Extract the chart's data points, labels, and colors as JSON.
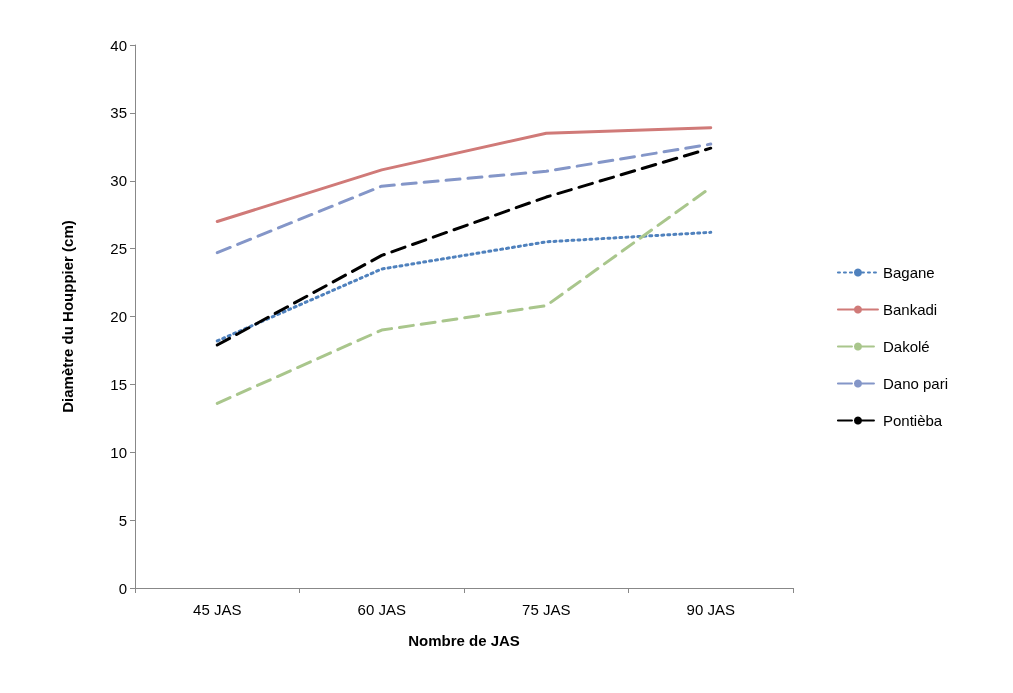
{
  "chart_data": {
    "type": "line",
    "xlabel": "Nombre de JAS",
    "ylabel": "Diamètre du Houppier (cm)",
    "categories": [
      "45 JAS",
      "60 JAS",
      "75 JAS",
      "90 JAS"
    ],
    "series": [
      {
        "name": "Bagane",
        "color": "#4f81bd",
        "line_style": "dotted",
        "values": [
          18.2,
          23.5,
          25.5,
          26.2
        ]
      },
      {
        "name": "Bankadi",
        "color": "#d07a78",
        "line_style": "solid",
        "values": [
          27.0,
          30.8,
          33.5,
          33.9
        ]
      },
      {
        "name": "Dakolé",
        "color": "#a9c68c",
        "line_style": "dashed",
        "values": [
          13.6,
          19.0,
          20.8,
          29.5
        ]
      },
      {
        "name": "Dano pari",
        "color": "#8496c8",
        "line_style": "dashed",
        "values": [
          24.7,
          29.6,
          30.7,
          32.7
        ]
      },
      {
        "name": "Pontièba",
        "color": "#000000",
        "line_style": "dashed",
        "values": [
          17.9,
          24.5,
          28.8,
          32.4
        ]
      }
    ],
    "ylim": [
      0,
      40
    ],
    "yticks": [
      0,
      5,
      10,
      15,
      20,
      25,
      30,
      35,
      40
    ],
    "grid": false,
    "legend": "right",
    "marker": "none"
  }
}
